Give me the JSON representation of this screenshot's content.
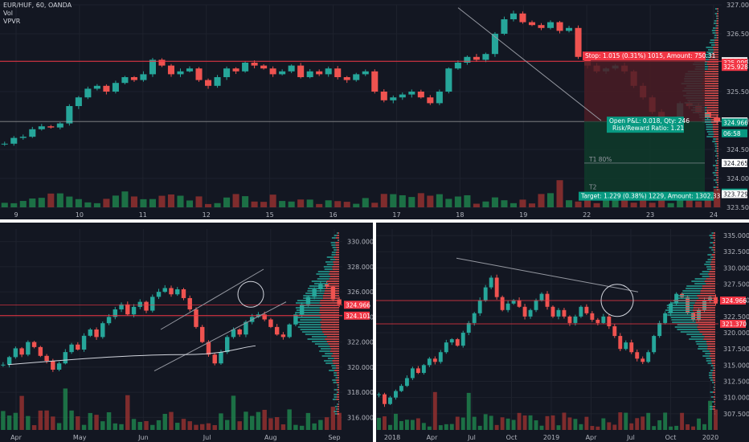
{
  "header": {
    "symbol": "EUR/HUF, 60, OANDA",
    "vol": "Vol",
    "vpvr": "VPVR"
  },
  "colors": {
    "background": "#131722",
    "up": "#26a69a",
    "down": "#ef5350",
    "vol_up": "#1e7a49",
    "vol_down": "#8c2f2f",
    "grid": "#1e222d",
    "axis_text": "#b2b5be",
    "red_line": "#f23645",
    "trend_line": "#9598a1",
    "profit_zone": "#0f3b2a",
    "loss_zone": "#4a1c24"
  },
  "chart_data": [
    {
      "type": "candlestick",
      "name": "top",
      "ylim": [
        323.5,
        327.0
      ],
      "y_ticks": [
        "327.000",
        "326.500",
        "326.025",
        "325.500",
        "325.000",
        "324.500",
        "324.000",
        "323.500"
      ],
      "x_labels": [
        "9",
        "10",
        "11",
        "12",
        "15",
        "16",
        "17",
        "18",
        "19",
        "22",
        "23",
        "24"
      ],
      "close": [
        324.6,
        324.7,
        324.72,
        324.85,
        324.9,
        324.88,
        324.95,
        325.25,
        325.4,
        325.55,
        325.6,
        325.5,
        325.65,
        325.75,
        325.7,
        325.8,
        326.05,
        325.95,
        325.8,
        325.85,
        325.9,
        325.7,
        325.6,
        325.75,
        325.9,
        325.85,
        326.0,
        325.95,
        325.9,
        325.8,
        325.85,
        325.95,
        325.75,
        325.85,
        325.8,
        325.9,
        325.75,
        325.7,
        325.8,
        325.85,
        325.5,
        325.35,
        325.4,
        325.45,
        325.5,
        325.4,
        325.3,
        325.5,
        325.9,
        326.0,
        326.1,
        326.05,
        326.15,
        326.5,
        326.75,
        326.85,
        326.7,
        326.65,
        326.6,
        326.7,
        326.55,
        326.6,
        326.1,
        325.95,
        325.85,
        325.9,
        325.95,
        325.85,
        325.6,
        325.4,
        325.15,
        324.9,
        324.95,
        325.3,
        325.25,
        325.15,
        325.05,
        324.98
      ],
      "vol_ticks_note": "",
      "series_labels": {
        "stop_label": "Stop: 1.015 (0.31%) 1015, Amount: 750.31",
        "target_label": "Target: 1.229 (0.38%) 1229, Amount: 1302.33",
        "open_pnl": "Open P&L: 0.018, Qty: 246",
        "rr": "Risk/Reward Ratio: 1.21",
        "t1": "T1 80%",
        "t2": "T2"
      },
      "price_tags": [
        {
          "text": "326.025",
          "value": 326.025,
          "kind": "white"
        },
        {
          "text": "325.999",
          "value": 325.999,
          "kind": "red"
        },
        {
          "text": "325.928",
          "value": 325.928,
          "kind": "red"
        },
        {
          "text": "324.984",
          "value": 324.984,
          "kind": "white"
        },
        {
          "text": "324.966",
          "value": 324.966,
          "kind": "green"
        },
        {
          "text": "06:58",
          "value": 324.78,
          "kind": "green"
        },
        {
          "text": "324.265",
          "value": 324.265,
          "kind": "white"
        },
        {
          "text": "323.755",
          "value": 323.755,
          "kind": "green"
        },
        {
          "text": "323.729",
          "value": 323.729,
          "kind": "white"
        }
      ]
    },
    {
      "type": "candlestick",
      "name": "bottom-left",
      "ylim": [
        315.0,
        331.0
      ],
      "y_ticks": [
        "330.000",
        "328.000",
        "326.000",
        "324.000",
        "322.000",
        "320.000",
        "318.000",
        "316.000"
      ],
      "x_labels": [
        "Apr",
        "May",
        "Jun",
        "Jul",
        "Aug",
        "Sep"
      ],
      "price_tags": [
        {
          "text": "324.966",
          "value": 324.966,
          "kind": "red"
        },
        {
          "text": "324.101",
          "value": 324.101,
          "kind": "red"
        }
      ],
      "close": [
        320.2,
        320.8,
        321.5,
        321.0,
        322.0,
        321.6,
        320.9,
        320.5,
        319.8,
        320.3,
        321.2,
        321.8,
        321.4,
        322.5,
        323.0,
        322.4,
        323.5,
        324.0,
        324.6,
        325.0,
        324.2,
        324.8,
        325.2,
        324.5,
        325.6,
        326.0,
        326.3,
        325.8,
        326.2,
        325.5,
        324.6,
        323.2,
        322.0,
        321.0,
        320.3,
        321.2,
        322.4,
        323.0,
        322.6,
        323.6,
        324.0,
        324.2,
        323.8,
        323.2,
        322.6,
        322.4,
        323.4,
        324.2,
        325.0,
        325.6,
        326.2,
        326.6,
        326.4,
        325.4,
        325.0
      ]
    },
    {
      "type": "candlestick",
      "name": "bottom-right",
      "ylim": [
        305.0,
        336.0
      ],
      "y_ticks": [
        "335.000",
        "332.500",
        "330.000",
        "327.500",
        "325.000",
        "322.500",
        "320.000",
        "317.500",
        "315.000",
        "312.500",
        "310.000",
        "307.500"
      ],
      "x_labels": [
        "2018",
        "Apr",
        "Jul",
        "Oct",
        "2019",
        "Apr",
        "Jul",
        "Oct",
        "2020"
      ],
      "price_tags": [
        {
          "text": "324.966",
          "value": 324.966,
          "kind": "red"
        },
        {
          "text": "321.370",
          "value": 321.37,
          "kind": "red"
        }
      ],
      "close": [
        310.5,
        309.0,
        310.0,
        311.0,
        311.8,
        313.0,
        314.5,
        313.8,
        315.0,
        316.0,
        315.5,
        317.0,
        318.5,
        319.0,
        318.0,
        320.0,
        321.5,
        323.0,
        325.0,
        327.0,
        328.5,
        325.5,
        323.5,
        324.5,
        325.0,
        324.0,
        322.5,
        323.5,
        325.0,
        326.0,
        324.0,
        322.5,
        323.5,
        322.5,
        321.5,
        322.5,
        324.0,
        323.0,
        322.0,
        321.5,
        322.5,
        321.0,
        319.5,
        317.5,
        318.5,
        317.0,
        316.0,
        315.5,
        317.0,
        319.5,
        321.5,
        323.0,
        324.5,
        326.0,
        325.5,
        323.0,
        322.0,
        323.5,
        325.0,
        325.5,
        324.5
      ]
    }
  ]
}
